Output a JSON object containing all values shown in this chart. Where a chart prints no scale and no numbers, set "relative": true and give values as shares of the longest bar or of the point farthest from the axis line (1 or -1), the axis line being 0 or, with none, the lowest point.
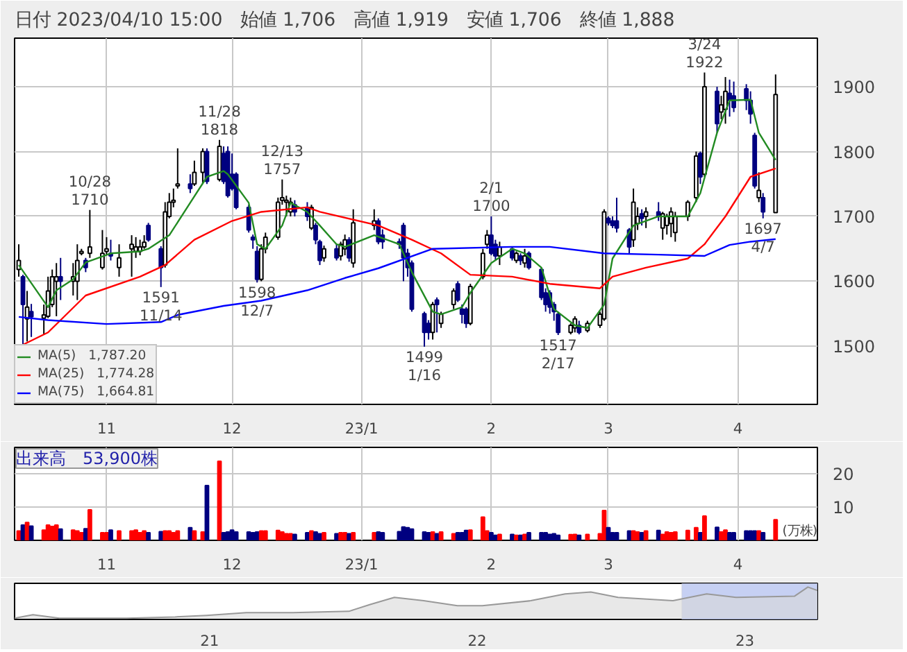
{
  "chart_data": [
    {
      "type": "candlestick",
      "title": "日付 2023/04/10 15:00　始値 1,706　高値 1,919　安値 1,706　終値 1,888",
      "x": [
        "2022-10-11",
        "2022-10-12",
        "2022-10-13",
        "2022-10-14",
        "2022-10-17",
        "2022-10-18",
        "2022-10-19",
        "2022-10-20",
        "2022-10-21",
        "2022-10-24",
        "2022-10-25",
        "2022-10-26",
        "2022-10-27",
        "2022-10-28",
        "2022-10-31",
        "2022-11-01",
        "2022-11-02",
        "2022-11-04",
        "2022-11-07",
        "2022-11-08",
        "2022-11-09",
        "2022-11-10",
        "2022-11-11",
        "2022-11-14",
        "2022-11-15",
        "2022-11-16",
        "2022-11-17",
        "2022-11-18",
        "2022-11-21",
        "2022-11-22",
        "2022-11-24",
        "2022-11-25",
        "2022-11-28",
        "2022-11-29",
        "2022-11-30",
        "2022-12-01",
        "2022-12-02",
        "2022-12-05",
        "2022-12-06",
        "2022-12-07",
        "2022-12-08",
        "2022-12-09",
        "2022-12-12",
        "2022-12-13",
        "2022-12-14",
        "2022-12-15",
        "2022-12-16",
        "2022-12-19",
        "2022-12-20",
        "2022-12-21",
        "2022-12-22",
        "2022-12-23",
        "2022-12-26",
        "2022-12-27",
        "2022-12-28",
        "2022-12-29",
        "2022-12-30",
        "2023-01-04",
        "2023-01-05",
        "2023-01-06",
        "2023-01-10",
        "2023-01-11",
        "2023-01-12",
        "2023-01-13",
        "2023-01-16",
        "2023-01-17",
        "2023-01-18",
        "2023-01-19",
        "2023-01-20",
        "2023-01-23",
        "2023-01-24",
        "2023-01-25",
        "2023-01-26",
        "2023-01-27",
        "2023-01-30",
        "2023-01-31",
        "2023-02-01",
        "2023-02-02",
        "2023-02-03",
        "2023-02-06",
        "2023-02-07",
        "2023-02-08",
        "2023-02-09",
        "2023-02-10",
        "2023-02-13",
        "2023-02-14",
        "2023-02-15",
        "2023-02-16",
        "2023-02-17",
        "2023-02-20",
        "2023-02-21",
        "2023-02-22",
        "2023-02-24",
        "2023-02-27",
        "2023-02-28",
        "2023-03-01",
        "2023-03-02",
        "2023-03-03",
        "2023-03-06",
        "2023-03-07",
        "2023-03-08",
        "2023-03-09",
        "2023-03-10",
        "2023-03-13",
        "2023-03-14",
        "2023-03-15",
        "2023-03-16",
        "2023-03-17",
        "2023-03-20",
        "2023-03-22",
        "2023-03-23",
        "2023-03-24",
        "2023-03-27",
        "2023-03-28",
        "2023-03-29",
        "2023-03-30",
        "2023-03-31",
        "2023-04-03",
        "2023-04-04",
        "2023-04-05",
        "2023-04-06",
        "2023-04-07",
        "2023-04-10"
      ],
      "ohlc": [
        [
          1618,
          1657,
          1607,
          1632
        ],
        [
          1607,
          1610,
          1503,
          1564
        ],
        [
          1542,
          1585,
          1507,
          1560
        ],
        [
          1553,
          1565,
          1514,
          1545
        ],
        [
          1543,
          1564,
          1517,
          1548
        ],
        [
          1546,
          1607,
          1543,
          1585
        ],
        [
          1564,
          1618,
          1560,
          1607
        ],
        [
          1600,
          1628,
          1546,
          1607
        ],
        [
          1607,
          1636,
          1571,
          1600
        ],
        [
          1600,
          1628,
          1578,
          1607
        ],
        [
          1600,
          1657,
          1571,
          1632
        ],
        [
          1643,
          1650,
          1640,
          1646
        ],
        [
          1632,
          1636,
          1614,
          1621
        ],
        [
          1643,
          1710,
          1636,
          1653
        ],
        [
          1621,
          1679,
          1618,
          1643
        ],
        [
          1646,
          1668,
          1640,
          1650
        ],
        [
          1643,
          1664,
          1632,
          1639
        ],
        [
          1621,
          1657,
          1607,
          1636
        ],
        [
          1650,
          1671,
          1607,
          1657
        ],
        [
          1646,
          1668,
          1636,
          1653
        ],
        [
          1646,
          1664,
          1640,
          1653
        ],
        [
          1653,
          1671,
          1650,
          1660
        ],
        [
          1686,
          1690,
          1661,
          1664
        ],
        [
          1650,
          1654,
          1591,
          1621
        ],
        [
          1625,
          1722,
          1621,
          1707
        ],
        [
          1700,
          1736,
          1697,
          1722
        ],
        [
          1722,
          1743,
          1714,
          1725
        ],
        [
          1747,
          1805,
          1743,
          1750
        ],
        [
          1750,
          1765,
          1736,
          1743
        ],
        [
          1750,
          1786,
          1747,
          1768
        ],
        [
          1768,
          1805,
          1750,
          1800
        ],
        [
          1800,
          1805,
          1750,
          1754
        ],
        [
          1757,
          1818,
          1754,
          1808
        ],
        [
          1797,
          1808,
          1750,
          1754
        ],
        [
          1800,
          1808,
          1729,
          1732
        ],
        [
          1765,
          1797,
          1740,
          1743
        ],
        [
          1765,
          1768,
          1711,
          1714
        ],
        [
          1714,
          1718,
          1675,
          1679
        ],
        [
          1668,
          1672,
          1650,
          1664
        ],
        [
          1646,
          1654,
          1598,
          1603
        ],
        [
          1603,
          1657,
          1600,
          1650
        ],
        [
          1650,
          1675,
          1643,
          1668
        ],
        [
          1668,
          1729,
          1664,
          1722
        ],
        [
          1725,
          1757,
          1718,
          1729
        ],
        [
          1722,
          1732,
          1700,
          1725
        ],
        [
          1707,
          1729,
          1700,
          1722
        ],
        [
          1718,
          1725,
          1700,
          1707
        ],
        [
          1714,
          1722,
          1693,
          1700
        ],
        [
          1682,
          1718,
          1679,
          1714
        ],
        [
          1686,
          1690,
          1657,
          1664
        ],
        [
          1661,
          1664,
          1625,
          1632
        ],
        [
          1636,
          1655,
          1630,
          1650
        ],
        [
          1650,
          1657,
          1632,
          1636
        ],
        [
          1639,
          1661,
          1632,
          1657
        ],
        [
          1650,
          1672,
          1640,
          1664
        ],
        [
          1664,
          1668,
          1630,
          1636
        ],
        [
          1628,
          1711,
          1621,
          1690
        ],
        [
          1686,
          1711,
          1679,
          1693
        ],
        [
          1693,
          1697,
          1657,
          1661
        ],
        [
          1671,
          1680,
          1650,
          1661
        ],
        [
          1661,
          1666,
          1650,
          1657
        ],
        [
          1686,
          1690,
          1600,
          1636
        ],
        [
          1643,
          1650,
          1607,
          1621
        ],
        [
          1628,
          1632,
          1553,
          1557
        ],
        [
          1550,
          1553,
          1499,
          1521
        ],
        [
          1535,
          1540,
          1510,
          1521
        ],
        [
          1521,
          1568,
          1510,
          1564
        ],
        [
          1571,
          1575,
          1521,
          1564
        ],
        [
          1535,
          1553,
          1528,
          1549
        ],
        [
          1564,
          1589,
          1557,
          1585
        ],
        [
          1596,
          1600,
          1568,
          1571
        ],
        [
          1557,
          1564,
          1535,
          1549
        ],
        [
          1557,
          1560,
          1528,
          1535
        ],
        [
          1535,
          1596,
          1532,
          1592
        ],
        [
          1607,
          1650,
          1603,
          1643
        ],
        [
          1657,
          1679,
          1650,
          1671
        ],
        [
          1671,
          1700,
          1640,
          1643
        ],
        [
          1657,
          1664,
          1632,
          1639
        ],
        [
          1639,
          1661,
          1625,
          1653
        ],
        [
          1650,
          1653,
          1632,
          1636
        ],
        [
          1632,
          1646,
          1628,
          1643
        ],
        [
          1639,
          1643,
          1625,
          1632
        ],
        [
          1628,
          1650,
          1621,
          1639
        ],
        [
          1643,
          1646,
          1618,
          1621
        ],
        [
          1618,
          1621,
          1571,
          1575
        ],
        [
          1582,
          1589,
          1553,
          1564
        ],
        [
          1582,
          1586,
          1550,
          1560
        ],
        [
          1564,
          1568,
          1539,
          1553
        ],
        [
          1549,
          1553,
          1517,
          1521
        ],
        [
          1521,
          1535,
          1518,
          1532
        ],
        [
          1528,
          1546,
          1521,
          1542
        ],
        [
          1532,
          1539,
          1518,
          1521
        ],
        [
          1524,
          1539,
          1521,
          1535
        ],
        [
          1532,
          1553,
          1528,
          1549
        ],
        [
          1542,
          1711,
          1539,
          1707
        ],
        [
          1697,
          1700,
          1686,
          1690
        ],
        [
          1693,
          1700,
          1682,
          1686
        ],
        [
          1693,
          1729,
          1675,
          1682
        ],
        [
          1679,
          1682,
          1643,
          1653
        ],
        [
          1664,
          1743,
          1653,
          1722
        ],
        [
          1689,
          1714,
          1679,
          1700
        ],
        [
          1704,
          1711,
          1686,
          1697
        ],
        [
          1700,
          1714,
          1682,
          1707
        ],
        [
          1707,
          1722,
          1693,
          1700
        ],
        [
          1682,
          1707,
          1664,
          1704
        ],
        [
          1686,
          1704,
          1672,
          1700
        ],
        [
          1689,
          1714,
          1668,
          1707
        ],
        [
          1675,
          1707,
          1661,
          1700
        ],
        [
          1700,
          1725,
          1693,
          1722
        ],
        [
          1729,
          1800,
          1722,
          1793
        ],
        [
          1797,
          1800,
          1750,
          1761
        ],
        [
          1765,
          1922,
          1761,
          1900
        ],
        [
          1893,
          1900,
          1829,
          1843
        ],
        [
          1861,
          1886,
          1850,
          1872
        ],
        [
          1865,
          1915,
          1843,
          1893
        ],
        [
          1890,
          1911,
          1854,
          1879
        ],
        [
          1886,
          1908,
          1861,
          1868
        ],
        [
          1897,
          1904,
          1864,
          1879
        ],
        [
          1879,
          1893,
          1843,
          1858
        ],
        [
          1825,
          1829,
          1743,
          1747
        ],
        [
          1729,
          1768,
          1722,
          1740
        ],
        [
          1729,
          1736,
          1697,
          1707
        ],
        [
          1706,
          1919,
          1706,
          1888
        ]
      ],
      "colors": [
        "#ffffff",
        "#000080",
        "#ffffff",
        "#000080",
        "#ffffff",
        "#ffffff",
        "#ffffff",
        "#ffffff",
        "#000080",
        "#ffffff",
        "#ffffff",
        "#ffffff",
        "#000080",
        "#ffffff",
        "#ffffff",
        "#ffffff",
        "#000080",
        "#ffffff",
        "#ffffff",
        "#ffffff",
        "#ffffff",
        "#ffffff",
        "#000080",
        "#000080",
        "#ffffff",
        "#ffffff",
        "#ffffff",
        "#ffffff",
        "#000080",
        "#ffffff",
        "#ffffff",
        "#000080",
        "#ffffff",
        "#000080",
        "#000080",
        "#000080",
        "#000080",
        "#000080",
        "#000080",
        "#000080",
        "#ffffff",
        "#ffffff",
        "#ffffff",
        "#ffffff",
        "#ffffff",
        "#ffffff",
        "#000080",
        "#000080",
        "#ffffff",
        "#000080",
        "#000080",
        "#ffffff",
        "#000080",
        "#ffffff",
        "#ffffff",
        "#000080",
        "#ffffff",
        "#ffffff",
        "#000080",
        "#000080",
        "#000080",
        "#000080",
        "#000080",
        "#000080",
        "#000080",
        "#000080",
        "#ffffff",
        "#000080",
        "#ffffff",
        "#ffffff",
        "#000080",
        "#000080",
        "#000080",
        "#ffffff",
        "#ffffff",
        "#ffffff",
        "#000080",
        "#000080",
        "#ffffff",
        "#000080",
        "#ffffff",
        "#000080",
        "#ffffff",
        "#000080",
        "#000080",
        "#000080",
        "#000080",
        "#000080",
        "#000080",
        "#ffffff",
        "#ffffff",
        "#000080",
        "#ffffff",
        "#ffffff",
        "#ffffff",
        "#000080",
        "#000080",
        "#000080",
        "#000080",
        "#ffffff",
        "#ffffff",
        "#000080",
        "#ffffff",
        "#000080",
        "#ffffff",
        "#ffffff",
        "#ffffff",
        "#ffffff",
        "#ffffff",
        "#ffffff",
        "#000080",
        "#ffffff",
        "#000080",
        "#ffffff",
        "#ffffff",
        "#000080",
        "#000080",
        "#000080",
        "#000080",
        "#000080",
        "#ffffff",
        "#000080",
        "#ffffff"
      ],
      "series": [
        {
          "type": "line",
          "name": "MA(5)　1,787.20",
          "color": "#228b22",
          "x": [
            "2022-10-11",
            "2022-10-18",
            "2022-10-20",
            "2022-10-24",
            "2022-10-27",
            "2022-11-02",
            "2022-11-09",
            "2022-11-11",
            "2022-11-16",
            "2022-11-21",
            "2022-11-25",
            "2022-11-29",
            "2022-11-30",
            "2022-12-05",
            "2022-12-07",
            "2022-12-09",
            "2022-12-13",
            "2022-12-15",
            "2022-12-19",
            "2022-12-22",
            "2022-12-26",
            "2022-12-28",
            "2023-01-04",
            "2023-01-10",
            "2023-01-13",
            "2023-01-18",
            "2023-01-20",
            "2023-01-25",
            "2023-01-27",
            "2023-02-01",
            "2023-02-06",
            "2023-02-09",
            "2023-02-13",
            "2023-02-16",
            "2023-02-21",
            "2023-02-24",
            "2023-02-28",
            "2023-03-02",
            "2023-03-07",
            "2023-03-13",
            "2023-03-20",
            "2023-03-23",
            "2023-03-27",
            "2023-03-30",
            "2023-04-04",
            "2023-04-06",
            "2023-04-10"
          ],
          "values": [
            1625,
            1560,
            1586,
            1603,
            1629,
            1643,
            1646,
            1650,
            1671,
            1721,
            1761,
            1770,
            1765,
            1721,
            1657,
            1650,
            1686,
            1721,
            1707,
            1686,
            1657,
            1653,
            1671,
            1657,
            1614,
            1553,
            1549,
            1560,
            1582,
            1628,
            1650,
            1643,
            1621,
            1557,
            1532,
            1528,
            1564,
            1635,
            1686,
            1700,
            1700,
            1736,
            1829,
            1879,
            1880,
            1829,
            1787
          ]
        },
        {
          "type": "line",
          "name": "MA(25)　1,774.28",
          "color": "#ff0000",
          "x": [
            "2022-10-12",
            "2022-10-18",
            "2022-10-27",
            "2022-11-09",
            "2022-11-15",
            "2022-11-22",
            "2022-12-01",
            "2022-12-08",
            "2022-12-19",
            "2022-12-22",
            "2023-01-05",
            "2023-01-13",
            "2023-01-20",
            "2023-01-27",
            "2023-02-06",
            "2023-02-15",
            "2023-02-27",
            "2023-03-02",
            "2023-03-10",
            "2023-03-20",
            "2023-03-24",
            "2023-03-29",
            "2023-04-04",
            "2023-04-10"
          ],
          "values": [
            1502,
            1521,
            1578,
            1607,
            1625,
            1664,
            1693,
            1707,
            1714,
            1707,
            1686,
            1664,
            1643,
            1610,
            1607,
            1596,
            1589,
            1607,
            1621,
            1635,
            1657,
            1700,
            1761,
            1774
          ]
        },
        {
          "type": "line",
          "name": "MA(75)　1,664.81",
          "color": "#0000ff",
          "x": [
            "2022-10-11",
            "2022-10-18",
            "2022-11-01",
            "2022-11-14",
            "2022-11-18",
            "2022-11-29",
            "2022-12-08",
            "2022-12-19",
            "2022-12-28",
            "2023-01-05",
            "2023-01-18",
            "2023-02-06",
            "2023-02-15",
            "2023-02-28",
            "2023-03-13",
            "2023-03-24",
            "2023-03-30",
            "2023-04-04",
            "2023-04-10"
          ],
          "values": [
            1545,
            1540,
            1534,
            1537,
            1548,
            1562,
            1570,
            1586,
            1605,
            1620,
            1650,
            1653,
            1653,
            1643,
            1641,
            1639,
            1656,
            1661,
            1665
          ]
        }
      ],
      "annotations": [
        {
          "text": "10/28\n1710",
          "x": "2022-10-28",
          "y": 1710
        },
        {
          "text": "1591\n11/14",
          "x": "2022-11-14",
          "y": 1591
        },
        {
          "text": "11/28\n1818",
          "x": "2022-11-28",
          "y": 1818
        },
        {
          "text": "1598\n12/7",
          "x": "2022-12-07",
          "y": 1598
        },
        {
          "text": "12/13\n1757",
          "x": "2022-12-13",
          "y": 1757
        },
        {
          "text": "1499\n1/16",
          "x": "2023-01-16",
          "y": 1499
        },
        {
          "text": "2/1\n1700",
          "x": "2023-02-01",
          "y": 1700
        },
        {
          "text": "1517\n2/17",
          "x": "2023-02-17",
          "y": 1517
        },
        {
          "text": "3/24\n1922",
          "x": "2023-03-24",
          "y": 1922
        },
        {
          "text": "1697\n4/7",
          "x": "2023-04-07",
          "y": 1697
        }
      ],
      "xlim": [
        "2022-10-10",
        "2023-04-20"
      ],
      "xticks": [
        {
          "value": "2022-11-01",
          "label": "11"
        },
        {
          "value": "2022-12-01",
          "label": "12"
        },
        {
          "value": "2023-01-01",
          "label": "23/1"
        },
        {
          "value": "2023-02-01",
          "label": "2"
        },
        {
          "value": "2023-03-01",
          "label": "3"
        },
        {
          "value": "2023-04-01",
          "label": "4"
        }
      ],
      "ylim": [
        1410,
        1975
      ],
      "yticks": [
        1500,
        1600,
        1700,
        1800,
        1900
      ],
      "grid": true,
      "legend": "bottom left"
    },
    {
      "type": "bar",
      "title": "出来高　53,900株",
      "ylabel": "(万株)",
      "x": [
        "2022-10-11",
        "2022-10-12",
        "2022-10-13",
        "2022-10-14",
        "2022-10-17",
        "2022-10-18",
        "2022-10-19",
        "2022-10-20",
        "2022-10-21",
        "2022-10-24",
        "2022-10-25",
        "2022-10-26",
        "2022-10-27",
        "2022-10-28",
        "2022-10-31",
        "2022-11-01",
        "2022-11-02",
        "2022-11-04",
        "2022-11-07",
        "2022-11-08",
        "2022-11-09",
        "2022-11-10",
        "2022-11-11",
        "2022-11-14",
        "2022-11-15",
        "2022-11-16",
        "2022-11-17",
        "2022-11-18",
        "2022-11-21",
        "2022-11-22",
        "2022-11-24",
        "2022-11-25",
        "2022-11-28",
        "2022-11-29",
        "2022-11-30",
        "2022-12-01",
        "2022-12-02",
        "2022-12-05",
        "2022-12-06",
        "2022-12-07",
        "2022-12-08",
        "2022-12-09",
        "2022-12-12",
        "2022-12-13",
        "2022-12-14",
        "2022-12-15",
        "2022-12-16",
        "2022-12-19",
        "2022-12-20",
        "2022-12-21",
        "2022-12-22",
        "2022-12-23",
        "2022-12-26",
        "2022-12-27",
        "2022-12-28",
        "2022-12-29",
        "2022-12-30",
        "2023-01-04",
        "2023-01-05",
        "2023-01-06",
        "2023-01-10",
        "2023-01-11",
        "2023-01-12",
        "2023-01-13",
        "2023-01-16",
        "2023-01-17",
        "2023-01-18",
        "2023-01-19",
        "2023-01-20",
        "2023-01-23",
        "2023-01-24",
        "2023-01-25",
        "2023-01-26",
        "2023-01-27",
        "2023-01-30",
        "2023-01-31",
        "2023-02-01",
        "2023-02-02",
        "2023-02-03",
        "2023-02-06",
        "2023-02-07",
        "2023-02-08",
        "2023-02-09",
        "2023-02-10",
        "2023-02-13",
        "2023-02-14",
        "2023-02-15",
        "2023-02-16",
        "2023-02-17",
        "2023-02-20",
        "2023-02-21",
        "2023-02-22",
        "2023-02-24",
        "2023-02-27",
        "2023-02-28",
        "2023-03-01",
        "2023-03-02",
        "2023-03-03",
        "2023-03-06",
        "2023-03-07",
        "2023-03-08",
        "2023-03-09",
        "2023-03-10",
        "2023-03-13",
        "2023-03-14",
        "2023-03-15",
        "2023-03-16",
        "2023-03-17",
        "2023-03-20",
        "2023-03-22",
        "2023-03-23",
        "2023-03-24",
        "2023-03-27",
        "2023-03-28",
        "2023-03-29",
        "2023-03-30",
        "2023-03-31",
        "2023-04-03",
        "2023-04-04",
        "2023-04-05",
        "2023-04-06",
        "2023-04-07",
        "2023-04-10"
      ],
      "values": [
        2.8,
        4.6,
        5.4,
        4.3,
        3.1,
        4.6,
        4.2,
        4.6,
        3.4,
        3.1,
        2.8,
        2.3,
        3.5,
        9.2,
        2.3,
        2.3,
        3.1,
        2.8,
        2.8,
        3.1,
        2.3,
        2.8,
        2.3,
        2.6,
        2.8,
        2.8,
        2.3,
        2.8,
        3.8,
        2.8,
        2.5,
        16.5,
        23.8,
        2.3,
        2.5,
        3.1,
        2.5,
        2.5,
        2.3,
        2.5,
        2.8,
        2.8,
        3.0,
        2.5,
        2.0,
        2.0,
        1.8,
        2.3,
        2.8,
        2.5,
        2.0,
        2.3,
        2.0,
        2.3,
        2.3,
        2.0,
        2.3,
        2.3,
        2.5,
        2.3,
        2.6,
        4.0,
        3.8,
        3.4,
        2.5,
        2.3,
        2.5,
        2.0,
        2.5,
        2.0,
        2.3,
        2.3,
        3.0,
        3.1,
        7.0,
        2.8,
        2.3,
        1.5,
        1.8,
        1.8,
        1.5,
        1.5,
        1.8,
        2.3,
        2.3,
        2.3,
        1.8,
        2.0,
        1.5,
        1.7,
        1.8,
        1.5,
        1.8,
        2.0,
        9.0,
        3.8,
        2.3,
        2.3,
        2.8,
        2.8,
        2.5,
        2.3,
        2.8,
        3.0,
        1.8,
        2.5,
        2.3,
        2.5,
        3.0,
        3.8,
        2.3,
        7.3,
        3.9,
        2.5,
        3.1,
        2.3,
        2.3,
        2.8,
        2.8,
        2.8,
        2.8,
        2.3,
        6.2
      ],
      "colors": [
        "#ff0000",
        "#000080",
        "#ff0000",
        "#000080",
        "#ff0000",
        "#ff0000",
        "#ff0000",
        "#ff0000",
        "#000080",
        "#ff0000",
        "#ff0000",
        "#ff0000",
        "#000080",
        "#ff0000",
        "#ff0000",
        "#ff0000",
        "#000080",
        "#ff0000",
        "#ff0000",
        "#ff0000",
        "#ff0000",
        "#ff0000",
        "#000080",
        "#000080",
        "#ff0000",
        "#ff0000",
        "#ff0000",
        "#ff0000",
        "#000080",
        "#ff0000",
        "#ff0000",
        "#000080",
        "#ff0000",
        "#000080",
        "#000080",
        "#000080",
        "#000080",
        "#000080",
        "#000080",
        "#000080",
        "#ff0000",
        "#ff0000",
        "#ff0000",
        "#ff0000",
        "#ff0000",
        "#ff0000",
        "#000080",
        "#000080",
        "#ff0000",
        "#000080",
        "#000080",
        "#ff0000",
        "#000080",
        "#ff0000",
        "#ff0000",
        "#000080",
        "#ff0000",
        "#ff0000",
        "#000080",
        "#000080",
        "#000080",
        "#000080",
        "#000080",
        "#000080",
        "#000080",
        "#000080",
        "#ff0000",
        "#000080",
        "#ff0000",
        "#ff0000",
        "#000080",
        "#000080",
        "#000080",
        "#ff0000",
        "#ff0000",
        "#ff0000",
        "#000080",
        "#000080",
        "#ff0000",
        "#000080",
        "#ff0000",
        "#000080",
        "#ff0000",
        "#000080",
        "#000080",
        "#000080",
        "#000080",
        "#000080",
        "#000080",
        "#ff0000",
        "#ff0000",
        "#000080",
        "#ff0000",
        "#ff0000",
        "#ff0000",
        "#000080",
        "#000080",
        "#000080",
        "#000080",
        "#ff0000",
        "#ff0000",
        "#000080",
        "#ff0000",
        "#000080",
        "#ff0000",
        "#ff0000",
        "#ff0000",
        "#ff0000",
        "#ff0000",
        "#ff0000",
        "#000080",
        "#ff0000",
        "#000080",
        "#ff0000",
        "#ff0000",
        "#000080",
        "#000080",
        "#000080",
        "#000080",
        "#000080",
        "#ff0000",
        "#000080",
        "#ff0000"
      ],
      "xlim": [
        "2022-10-10",
        "2023-04-20"
      ],
      "xticks": [
        {
          "value": "2022-11-01",
          "label": "11"
        },
        {
          "value": "2022-12-01",
          "label": "12"
        },
        {
          "value": "2023-01-01",
          "label": "23/1"
        },
        {
          "value": "2023-02-01",
          "label": "2"
        },
        {
          "value": "2023-03-01",
          "label": "3"
        },
        {
          "value": "2023-04-01",
          "label": "4"
        }
      ],
      "ylim": [
        0,
        28
      ],
      "yticks": [
        10,
        20
      ],
      "grid": true
    },
    {
      "type": "area",
      "relative": true,
      "x": [
        "2020-04-10",
        "2020-05-05",
        "2020-06-10",
        "2020-09-10",
        "2020-11-15",
        "2020-12-28",
        "2021-02-20",
        "2021-04-25",
        "2021-07-10",
        "2021-08-08",
        "2021-09-10",
        "2021-10-20",
        "2021-12-05",
        "2022-01-08",
        "2022-03-15",
        "2022-05-01",
        "2022-06-05",
        "2022-07-12",
        "2022-09-25",
        "2022-11-10",
        "2022-12-20",
        "2023-03-10",
        "2023-03-28",
        "2023-04-10"
      ],
      "series": [
        {
          "color": "#999999",
          "values": [
            0,
            0.11,
            0,
            0,
            0.04,
            0.09,
            0.18,
            0.18,
            0.22,
            0.44,
            0.67,
            0.56,
            0.4,
            0.4,
            0.56,
            0.78,
            0.84,
            0.67,
            0.56,
            0.78,
            0.67,
            0.71,
            1.0,
            0.89
          ]
        }
      ],
      "xlim": [
        "2020-04-10",
        "2023-04-10"
      ],
      "xticks": [
        {
          "value": "2021-01-01",
          "label": "21"
        },
        {
          "value": "2022-01-01",
          "label": "22"
        },
        {
          "value": "2023-01-01",
          "label": "23"
        }
      ],
      "bands": [
        {
          "axis": "x",
          "from": "2022-10-07",
          "to": "2023-04-10",
          "color": "#b8c4f0"
        }
      ]
    }
  ]
}
